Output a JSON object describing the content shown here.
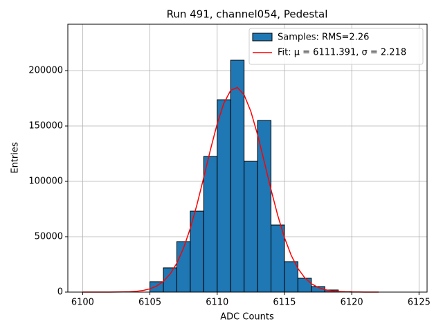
{
  "chart_data": {
    "type": "histogram",
    "title": "Run 491, channel054, Pedestal",
    "xlabel": "ADC Counts",
    "ylabel": "Entries",
    "bins": [
      6105,
      6106,
      6107,
      6108,
      6109,
      6110,
      6111,
      6112,
      6113,
      6114,
      6115,
      6116,
      6117,
      6118,
      6119,
      6120
    ],
    "series": [
      {
        "name": "Samples: RMS=2.26",
        "type": "histogram",
        "color": "#1f77b4",
        "values": [
          9400,
          21900,
          45600,
          73100,
          122500,
          173700,
          209400,
          118100,
          155000,
          60600,
          27500,
          12500,
          5000,
          1900,
          400
        ]
      },
      {
        "name": "Fit: μ = 6111.391, σ = 2.218",
        "type": "line",
        "color": "#ff0000",
        "x": [
          6100,
          6100.5,
          6101,
          6101.5,
          6102,
          6102.5,
          6103,
          6103.5,
          6104,
          6104.5,
          6105,
          6105.5,
          6106,
          6106.5,
          6107,
          6107.5,
          6108,
          6108.5,
          6109,
          6109.5,
          6110,
          6110.5,
          6111,
          6111.5,
          6112,
          6112.5,
          6113,
          6113.5,
          6114,
          6114.5,
          6115,
          6115.5,
          6116,
          6116.5,
          6117,
          6117.5,
          6118,
          6118.5,
          6119,
          6119.5,
          6120,
          6120.5,
          6121,
          6121.5,
          6122
        ],
        "values": [
          0,
          1,
          3,
          9,
          24,
          60,
          144,
          330,
          717,
          1484,
          2914,
          5439,
          9642,
          16270,
          26060,
          39700,
          57480,
          79110,
          103470,
          128630,
          151960,
          170660,
          182150,
          184780,
          178150,
          163260,
          142190,
          117720,
          92630,
          69260,
          49230,
          33260,
          21350,
          13020,
          7550,
          4165,
          2183,
          1087,
          514,
          231,
          99,
          40,
          16,
          6,
          2
        ]
      }
    ],
    "xlim": [
      6098.9,
      6125.6
    ],
    "ylim": [
      0,
      241900
    ],
    "xticks": [
      6100,
      6105,
      6110,
      6115,
      6120,
      6125
    ],
    "yticks": [
      0,
      50000,
      100000,
      150000,
      200000
    ],
    "grid": true,
    "legend": "upper right"
  }
}
